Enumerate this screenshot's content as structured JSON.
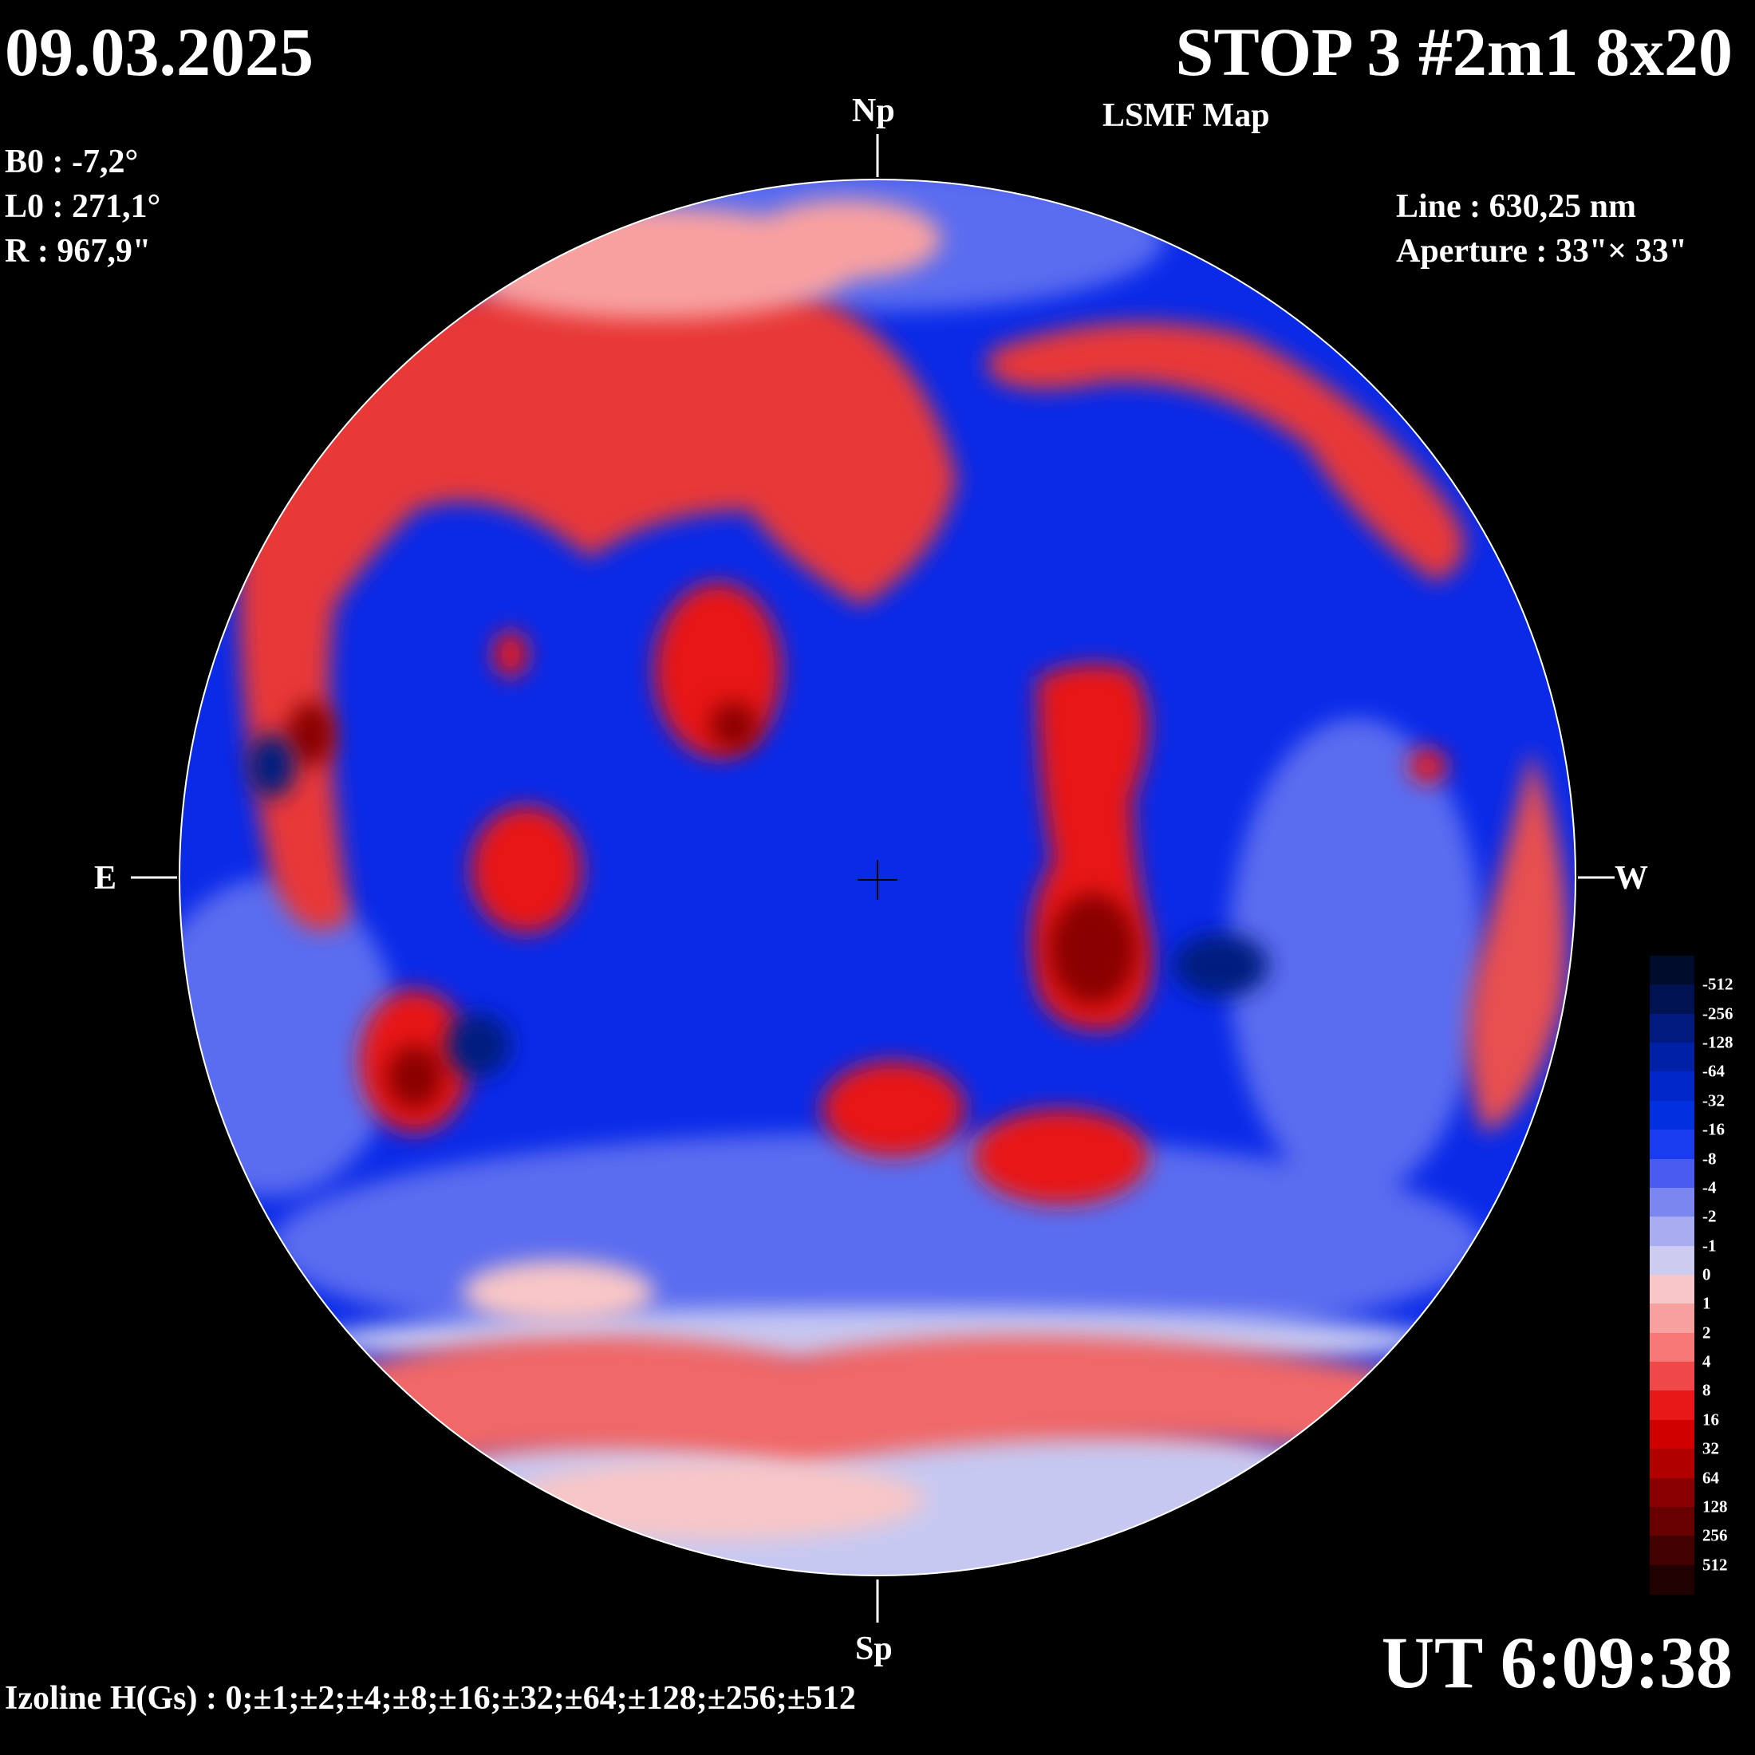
{
  "header": {
    "date": "09.03.2025",
    "title": "STOP 3 #2m1 8x20",
    "subtitle": "LSMF  Map"
  },
  "params": {
    "b0": "B0 : -7,2°",
    "l0": "L0 : 271,1°",
    "r": "R  : 967,9\"",
    "line": "Line :  630,25 nm",
    "aperture": "Aperture : 33\"× 33\""
  },
  "directions": {
    "north": "Np",
    "south": "Sp",
    "east": "E",
    "west": "W"
  },
  "footer": {
    "time": "UT 6:09:38",
    "izoline": "Izoline H(Gs) : 0;±1;±2;±4;±8;±16;±32;±64;±128;±256;±512"
  },
  "colorbar": {
    "labels": [
      "-512",
      "-256",
      "-128",
      "-64",
      "-32",
      "-16",
      "-8",
      "-4",
      "-2",
      "-1",
      "0",
      "1",
      "2",
      "4",
      "8",
      "16",
      "32",
      "64",
      "128",
      "256",
      "512"
    ],
    "colors": [
      "#000c2c",
      "#001252",
      "#001a80",
      "#0020a8",
      "#0028c8",
      "#0030e0",
      "#1a3cf0",
      "#4a5cf0",
      "#7c86f0",
      "#a8acf0",
      "#ccccf0",
      "#f8c6c6",
      "#f8a0a0",
      "#f87878",
      "#f04848",
      "#e81818",
      "#d00000",
      "#b00000",
      "#8a0000",
      "#680000",
      "#420000",
      "#200000"
    ]
  },
  "map": {
    "negative_color": "#0a2ae8",
    "positive_color": "#e81818"
  }
}
